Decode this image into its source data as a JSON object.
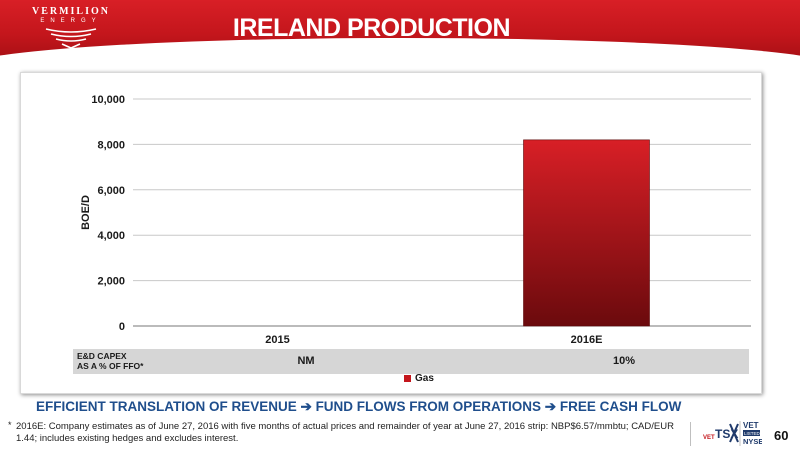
{
  "header": {
    "logo_name": "VERMILION",
    "logo_sub": "ENERGY",
    "title": "IRELAND PRODUCTION"
  },
  "chart_data": {
    "type": "bar",
    "categories": [
      "2015",
      "2016E"
    ],
    "series": [
      {
        "name": "Gas",
        "values": [
          0,
          8200
        ]
      }
    ],
    "ylabel": "BOE/D",
    "xlabel": "",
    "ylim": [
      0,
      10000
    ],
    "yticks": [
      0,
      2000,
      4000,
      6000,
      8000,
      10000
    ],
    "ytick_labels": [
      "0",
      "2,000",
      "4,000",
      "6,000",
      "8,000",
      "10,000"
    ],
    "grid": true,
    "legend": "bottom",
    "colors": {
      "gas_top": "#d81f26",
      "gas_bottom": "#6b0a0d"
    }
  },
  "capex": {
    "label_line1": "E&D CAPEX",
    "label_line2": "AS A % OF FFO*",
    "values": [
      "NM",
      "10%"
    ]
  },
  "tagline": "EFFICIENT TRANSLATION OF REVENUE ➔ FUND FLOWS FROM OPERATIONS ➔ FREE CASH FLOW",
  "footnote": {
    "marker": "*",
    "text": "2016E: Company estimates as of June 27, 2016 with five months of actual prices and remainder of year at June 27, 2016 strip: NBP$6.57/mmbtu; CAD/EUR 1.44; includes existing hedges and excludes interest."
  },
  "ticker": {
    "prefix": "VET",
    "exchange1": "TSX",
    "symbol": "VET",
    "listed": "LISTED",
    "exchange2": "NYSE"
  },
  "page_number": "60"
}
